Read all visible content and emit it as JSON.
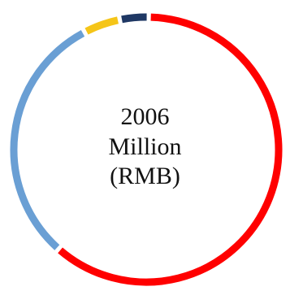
{
  "chart_data": {
    "type": "pie",
    "style": "donut",
    "center_text": [
      "2006",
      "Million",
      "(RMB)"
    ],
    "slices": [
      {
        "value": 0.612,
        "color": "#ff0000"
      },
      {
        "value": 0.308,
        "color": "#6a9fd4"
      },
      {
        "value": 0.045,
        "color": "#f5c518"
      },
      {
        "value": 0.035,
        "color": "#1f3864"
      }
    ],
    "start_angle_deg": 2,
    "legend": "none"
  }
}
